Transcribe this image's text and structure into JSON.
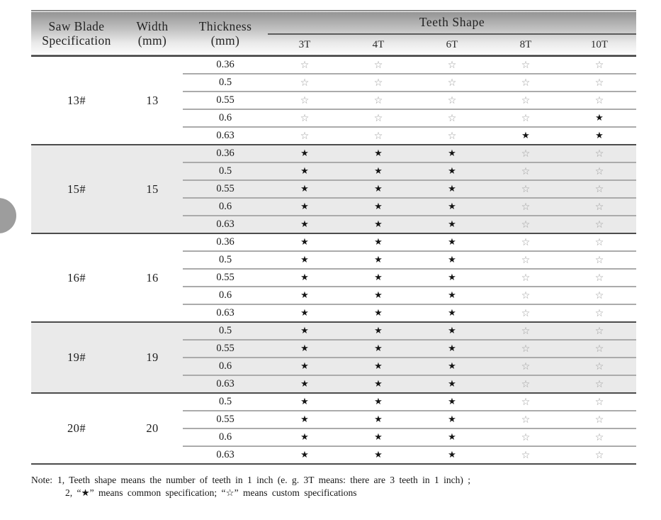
{
  "page": {
    "background": "#ffffff"
  },
  "carousel": {
    "direction": "previous"
  },
  "colors": {
    "star_common": "#161616",
    "star_custom": "#9b9b9b",
    "group_shaded_bg": "#eaeaea",
    "circle_button": "#9d9d9d"
  },
  "table": {
    "headers": {
      "spec_line1": "Saw Blade",
      "spec_line2": "Specification",
      "width_line1": "Width",
      "width_line2": "(mm)",
      "thickness_line1": "Thickness",
      "thickness_line2": "(mm)",
      "teeth_shape": "Teeth Shape",
      "teeth_cols": [
        "3T",
        "4T",
        "6T",
        "8T",
        "10T"
      ]
    },
    "symbols": {
      "common": "★",
      "custom": "☆"
    },
    "groups": [
      {
        "spec": "13#",
        "width": "13",
        "shaded": false,
        "rows": [
          {
            "thickness": "0.36",
            "stars": [
              "custom",
              "custom",
              "custom",
              "custom",
              "custom"
            ]
          },
          {
            "thickness": "0.5",
            "stars": [
              "custom",
              "custom",
              "custom",
              "custom",
              "custom"
            ]
          },
          {
            "thickness": "0.55",
            "stars": [
              "custom",
              "custom",
              "custom",
              "custom",
              "custom"
            ]
          },
          {
            "thickness": "0.6",
            "stars": [
              "custom",
              "custom",
              "custom",
              "custom",
              "common"
            ]
          },
          {
            "thickness": "0.63",
            "stars": [
              "custom",
              "custom",
              "custom",
              "common",
              "common"
            ]
          }
        ]
      },
      {
        "spec": "15#",
        "width": "15",
        "shaded": true,
        "rows": [
          {
            "thickness": "0.36",
            "stars": [
              "common",
              "common",
              "common",
              "custom",
              "custom"
            ]
          },
          {
            "thickness": "0.5",
            "stars": [
              "common",
              "common",
              "common",
              "custom",
              "custom"
            ]
          },
          {
            "thickness": "0.55",
            "stars": [
              "common",
              "common",
              "common",
              "custom",
              "custom"
            ]
          },
          {
            "thickness": "0.6",
            "stars": [
              "common",
              "common",
              "common",
              "custom",
              "custom"
            ]
          },
          {
            "thickness": "0.63",
            "stars": [
              "common",
              "common",
              "common",
              "custom",
              "custom"
            ]
          }
        ]
      },
      {
        "spec": "16#",
        "width": "16",
        "shaded": false,
        "rows": [
          {
            "thickness": "0.36",
            "stars": [
              "common",
              "common",
              "common",
              "custom",
              "custom"
            ]
          },
          {
            "thickness": "0.5",
            "stars": [
              "common",
              "common",
              "common",
              "custom",
              "custom"
            ]
          },
          {
            "thickness": "0.55",
            "stars": [
              "common",
              "common",
              "common",
              "custom",
              "custom"
            ]
          },
          {
            "thickness": "0.6",
            "stars": [
              "common",
              "common",
              "common",
              "custom",
              "custom"
            ]
          },
          {
            "thickness": "0.63",
            "stars": [
              "common",
              "common",
              "common",
              "custom",
              "custom"
            ]
          }
        ]
      },
      {
        "spec": "19#",
        "width": "19",
        "shaded": true,
        "rows": [
          {
            "thickness": "0.5",
            "stars": [
              "common",
              "common",
              "common",
              "custom",
              "custom"
            ]
          },
          {
            "thickness": "0.55",
            "stars": [
              "common",
              "common",
              "common",
              "custom",
              "custom"
            ]
          },
          {
            "thickness": "0.6",
            "stars": [
              "common",
              "common",
              "common",
              "custom",
              "custom"
            ]
          },
          {
            "thickness": "0.63",
            "stars": [
              "common",
              "common",
              "common",
              "custom",
              "custom"
            ]
          }
        ]
      },
      {
        "spec": "20#",
        "width": "20",
        "shaded": false,
        "rows": [
          {
            "thickness": "0.5",
            "stars": [
              "common",
              "common",
              "common",
              "custom",
              "custom"
            ]
          },
          {
            "thickness": "0.55",
            "stars": [
              "common",
              "common",
              "common",
              "custom",
              "custom"
            ]
          },
          {
            "thickness": "0.6",
            "stars": [
              "common",
              "common",
              "common",
              "custom",
              "custom"
            ]
          },
          {
            "thickness": "0.63",
            "stars": [
              "common",
              "common",
              "common",
              "custom",
              "custom"
            ]
          }
        ]
      }
    ]
  },
  "note": {
    "label": "Note:",
    "line1": "1, Teeth shape means the number of teeth in 1 inch (e. g. 3T means: there are 3 teeth in 1 inch) ;",
    "line2": "2, “★” means common specification; “☆” means custom specifications"
  }
}
